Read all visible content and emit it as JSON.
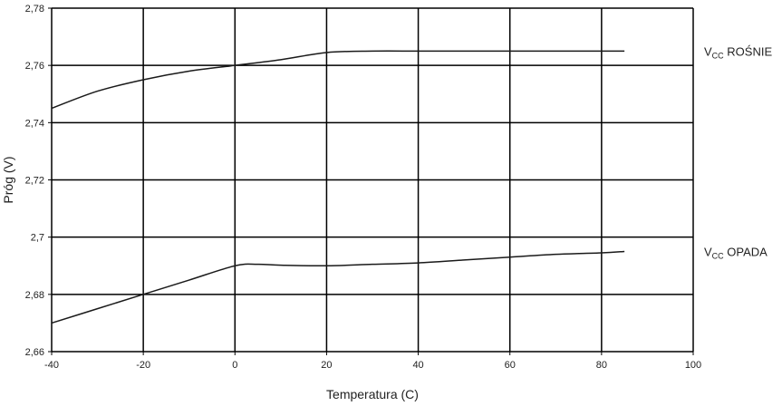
{
  "chart_data": {
    "type": "line",
    "title": "",
    "xlabel": "Temperatura (C)",
    "ylabel": "Próg (V)",
    "xlim": [
      -40,
      100
    ],
    "ylim": [
      2.66,
      2.78
    ],
    "x_ticks": [
      "-40",
      "-20",
      "0",
      "20",
      "40",
      "60",
      "80",
      "100"
    ],
    "y_ticks": [
      "2,66",
      "2,68",
      "2,7",
      "2,72",
      "2,74",
      "2,76",
      "2,78"
    ],
    "grid": true,
    "legend": "none",
    "series": [
      {
        "name": "VCC ROŚNIE",
        "label_main": "V",
        "label_sub": "CC",
        "label_rest": " ROŚNIE",
        "x": [
          -40,
          -30,
          -20,
          -10,
          0,
          10,
          20,
          30,
          40,
          50,
          60,
          70,
          80,
          85
        ],
        "y": [
          2.745,
          2.751,
          2.755,
          2.758,
          2.76,
          2.762,
          2.7645,
          2.765,
          2.765,
          2.765,
          2.765,
          2.765,
          2.765,
          2.765
        ]
      },
      {
        "name": "VCC OPADA",
        "label_main": "V",
        "label_sub": "CC",
        "label_rest": " OPADA",
        "x": [
          -40,
          -30,
          -20,
          -10,
          0,
          5,
          10,
          20,
          30,
          40,
          50,
          60,
          70,
          80,
          85
        ],
        "y": [
          2.67,
          2.675,
          2.68,
          2.685,
          2.69,
          2.6905,
          2.6902,
          2.69,
          2.6905,
          2.691,
          2.692,
          2.693,
          2.694,
          2.6945,
          2.695
        ]
      }
    ],
    "line_color": "#1a1a1a",
    "grid_color": "#000000"
  }
}
